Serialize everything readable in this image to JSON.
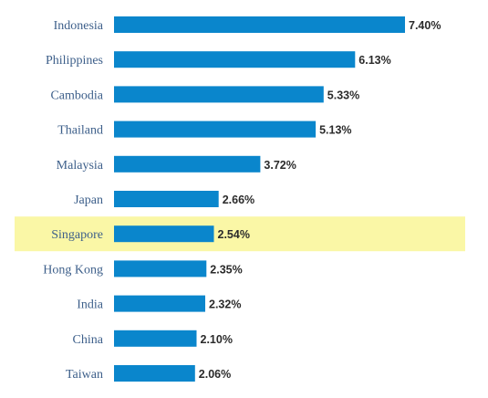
{
  "chart_data": {
    "type": "bar",
    "orientation": "horizontal",
    "title": "",
    "xlabel": "",
    "ylabel": "",
    "categories": [
      "Indonesia",
      "Philippines",
      "Cambodia",
      "Thailand",
      "Malaysia",
      "Japan",
      "Singapore",
      "Hong Kong",
      "India",
      "China",
      "Taiwan"
    ],
    "values": [
      7.4,
      6.13,
      5.33,
      5.13,
      3.72,
      2.66,
      2.54,
      2.35,
      2.32,
      2.1,
      2.06
    ],
    "value_labels": [
      "7.40%",
      "6.13%",
      "5.33%",
      "5.13%",
      "3.72%",
      "2.66%",
      "2.54%",
      "2.35%",
      "2.32%",
      "2.10%",
      "2.06%"
    ],
    "xlim": [
      0,
      7.4
    ],
    "highlighted_category": "Singapore",
    "grid": false,
    "legend": "none",
    "colors": {
      "bar": "#0a86cc",
      "highlight_row": "#faf7a6",
      "category_text": "#3d5f8a",
      "value_text": "#2b2b2b"
    }
  }
}
